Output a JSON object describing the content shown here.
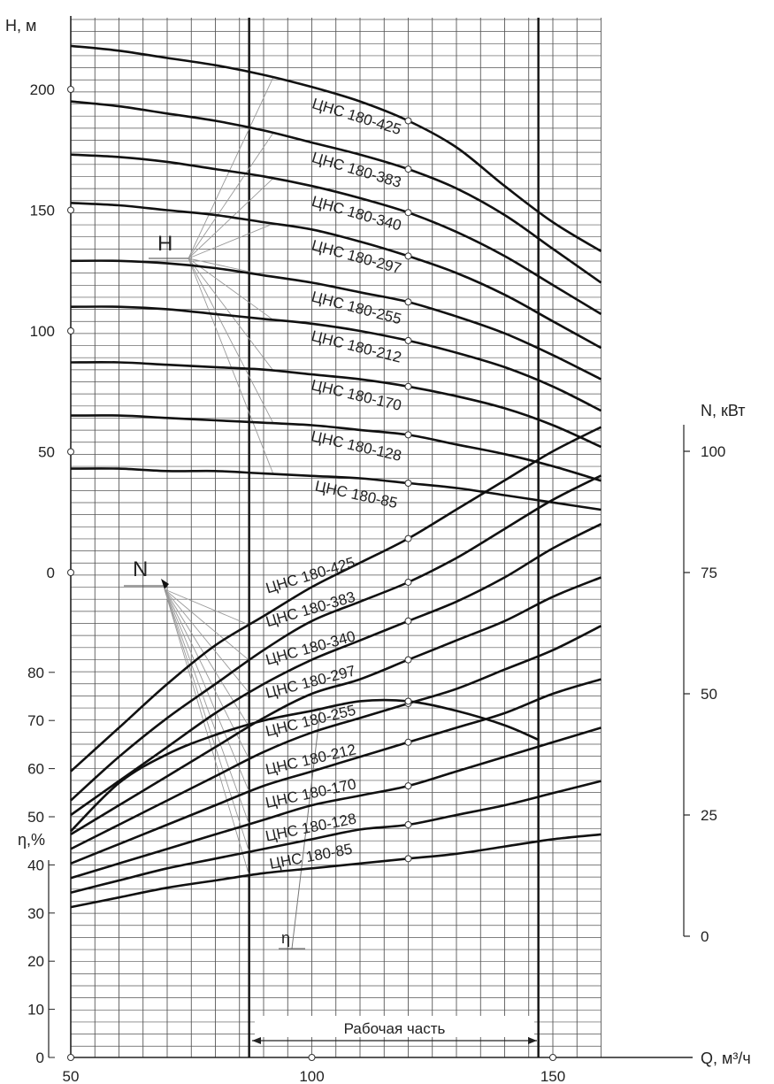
{
  "chart_data": {
    "type": "line",
    "x_axis": {
      "label": "Q, м³/ч",
      "range": [
        50,
        162
      ],
      "ticks": [
        50,
        100,
        150
      ]
    },
    "head_axis": {
      "label": "H, м",
      "range": [
        -237,
        220
      ],
      "ticks": [
        0,
        50,
        100,
        150,
        200
      ]
    },
    "power_axis": {
      "label": "N, кВт",
      "range": [
        0,
        105
      ],
      "ticks": [
        0,
        25,
        50,
        75,
        100
      ]
    },
    "efficiency_axis": {
      "label": "η,%",
      "range": [
        0,
        80
      ],
      "ticks": [
        0,
        10,
        20,
        30,
        40,
        50,
        60,
        70,
        80
      ]
    },
    "grid": true,
    "working_range": {
      "label": "Рабочая часть",
      "q_min": 87,
      "q_max": 147
    },
    "series_labels": {
      "head": "H",
      "power": "N",
      "efficiency": "η"
    },
    "head_series": [
      {
        "name": "ЦНС 180-425",
        "x": [
          50,
          60,
          70,
          80,
          90,
          100,
          110,
          120,
          130,
          140,
          150,
          160
        ],
        "values": [
          218,
          216,
          213,
          210,
          206,
          201,
          195,
          187,
          176,
          160,
          145,
          133
        ]
      },
      {
        "name": "ЦНС 180-383",
        "x": [
          50,
          60,
          70,
          80,
          90,
          100,
          110,
          120,
          130,
          140,
          150,
          160
        ],
        "values": [
          195,
          193,
          190,
          187,
          183,
          178,
          173,
          167,
          159,
          148,
          134,
          120
        ]
      },
      {
        "name": "ЦНС 180-340",
        "x": [
          50,
          60,
          70,
          80,
          90,
          100,
          110,
          120,
          130,
          140,
          150,
          160
        ],
        "values": [
          173,
          172,
          170,
          167,
          164,
          160,
          155,
          149,
          141,
          131,
          119,
          107
        ]
      },
      {
        "name": "ЦНС 180-297",
        "x": [
          50,
          60,
          70,
          80,
          90,
          100,
          110,
          120,
          130,
          140,
          150,
          160
        ],
        "values": [
          153,
          152,
          150,
          148,
          145,
          142,
          137,
          131,
          124,
          115,
          104,
          93
        ]
      },
      {
        "name": "ЦНС 180-255",
        "x": [
          50,
          60,
          70,
          80,
          90,
          100,
          110,
          120,
          130,
          140,
          150,
          160
        ],
        "values": [
          129,
          129,
          128,
          126,
          123,
          120,
          116,
          112,
          106,
          99,
          90,
          80
        ]
      },
      {
        "name": "ЦНС 180-212",
        "x": [
          50,
          60,
          70,
          80,
          90,
          100,
          110,
          120,
          130,
          140,
          150,
          160
        ],
        "values": [
          110,
          110,
          109,
          107,
          105,
          103,
          100,
          96,
          91,
          85,
          77,
          67
        ]
      },
      {
        "name": "ЦНС 180-170",
        "x": [
          50,
          60,
          70,
          80,
          90,
          100,
          110,
          120,
          130,
          140,
          150,
          160
        ],
        "values": [
          87,
          87,
          86,
          85,
          84,
          82,
          80,
          77,
          73,
          68,
          61,
          52
        ]
      },
      {
        "name": "ЦНС 180-128",
        "x": [
          50,
          60,
          70,
          80,
          90,
          100,
          110,
          120,
          130,
          140,
          150,
          160
        ],
        "values": [
          65,
          65,
          64,
          63,
          62,
          61,
          59,
          57,
          53,
          49,
          44,
          38
        ]
      },
      {
        "name": "ЦНС 180-85",
        "x": [
          50,
          60,
          70,
          80,
          90,
          100,
          110,
          120,
          130,
          140,
          150,
          160
        ],
        "values": [
          43,
          43,
          42,
          42,
          41,
          40,
          39,
          37,
          35,
          32,
          29,
          26
        ]
      }
    ],
    "power_series": [
      {
        "name": "ЦНС 180-425",
        "x": [
          50,
          60,
          70,
          80,
          90,
          100,
          110,
          120,
          130,
          140,
          150,
          160
        ],
        "values": [
          34,
          43,
          52,
          60,
          66,
          72,
          77,
          82,
          88,
          94,
          100,
          105
        ]
      },
      {
        "name": "ЦНС 180-383",
        "x": [
          50,
          60,
          70,
          80,
          90,
          100,
          110,
          120,
          130,
          140,
          150,
          160
        ],
        "values": [
          28,
          37,
          45,
          52,
          59,
          65,
          69,
          73,
          78,
          84,
          90,
          95
        ]
      },
      {
        "name": "ЦНС 180-340",
        "x": [
          50,
          60,
          70,
          80,
          90,
          100,
          110,
          120,
          130,
          140,
          150,
          160
        ],
        "values": [
          25,
          32,
          39,
          46,
          52,
          57,
          61,
          65,
          69,
          74,
          80,
          85
        ]
      },
      {
        "name": "ЦНС 180-297",
        "x": [
          50,
          60,
          70,
          80,
          90,
          100,
          110,
          120,
          130,
          140,
          150,
          160
        ],
        "values": [
          21,
          27,
          33,
          39,
          45,
          50,
          53,
          57,
          61,
          65,
          70,
          74
        ]
      },
      {
        "name": "ЦНС 180-255",
        "x": [
          50,
          60,
          70,
          80,
          90,
          100,
          110,
          120,
          130,
          140,
          150,
          160
        ],
        "values": [
          18,
          23,
          28,
          33,
          38,
          42,
          45,
          48,
          51,
          55,
          59,
          64
        ]
      },
      {
        "name": "ЦНС 180-212",
        "x": [
          50,
          60,
          70,
          80,
          90,
          100,
          110,
          120,
          130,
          140,
          150,
          160
        ],
        "values": [
          15,
          19,
          23,
          27,
          31,
          34,
          37,
          40,
          43,
          46,
          50,
          53
        ]
      },
      {
        "name": "ЦНС 180-170",
        "x": [
          50,
          60,
          70,
          80,
          90,
          100,
          110,
          120,
          130,
          140,
          150,
          160
        ],
        "values": [
          12,
          15,
          18,
          21,
          24,
          27,
          29,
          31,
          34,
          37,
          40,
          43
        ]
      },
      {
        "name": "ЦНС 180-128",
        "x": [
          50,
          60,
          70,
          80,
          90,
          100,
          110,
          120,
          130,
          140,
          150,
          160
        ],
        "values": [
          9,
          11.5,
          14,
          16,
          18,
          20,
          22,
          23,
          25,
          27,
          29.5,
          32
        ]
      },
      {
        "name": "ЦНС 180-85",
        "x": [
          50,
          60,
          70,
          80,
          90,
          100,
          110,
          120,
          130,
          140,
          150,
          160
        ],
        "values": [
          6,
          8,
          10,
          11.5,
          13,
          14,
          15,
          16,
          17,
          18.5,
          20,
          21
        ]
      }
    ],
    "efficiency_series": {
      "name": "η",
      "x": [
        50,
        60,
        70,
        80,
        90,
        100,
        110,
        120,
        130,
        140,
        147
      ],
      "values": [
        47,
        57,
        63,
        67,
        70,
        72,
        74,
        74,
        72,
        69,
        66
      ]
    }
  }
}
